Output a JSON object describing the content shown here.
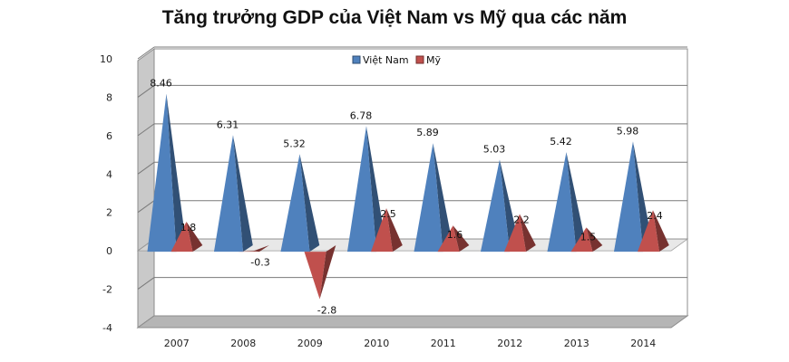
{
  "chart_data": {
    "type": "bar",
    "title": "Tăng trưởng GDP của Việt Nam vs Mỹ qua các năm",
    "categories": [
      "2007",
      "2008",
      "2009",
      "2010",
      "2011",
      "2012",
      "2013",
      "2014"
    ],
    "series": [
      {
        "name": "Việt Nam",
        "values": [
          8.46,
          6.31,
          5.32,
          6.78,
          5.89,
          5.03,
          5.42,
          5.98
        ],
        "color": "#4f81bd"
      },
      {
        "name": "Mỹ",
        "values": [
          1.8,
          -0.3,
          -2.8,
          2.5,
          1.6,
          2.2,
          1.5,
          2.4
        ],
        "color": "#c0504d"
      }
    ],
    "data_labels": [
      [
        "8.46",
        "6.31",
        "5.32",
        "6.78",
        "5.89",
        "5.03",
        "5.42",
        "5.98"
      ],
      [
        "1.8",
        "-0.3",
        "-2.8",
        "2.5",
        "1.6",
        "2.2",
        "1.5",
        "2.4"
      ]
    ],
    "ylim": [
      -4,
      10
    ],
    "yticks": [
      "-4",
      "-2",
      "0",
      "2",
      "4",
      "6",
      "8",
      "10"
    ],
    "xlabel": "",
    "ylabel": "",
    "grid": true,
    "legend_position": "top-center",
    "style": "3d-pyramid"
  }
}
